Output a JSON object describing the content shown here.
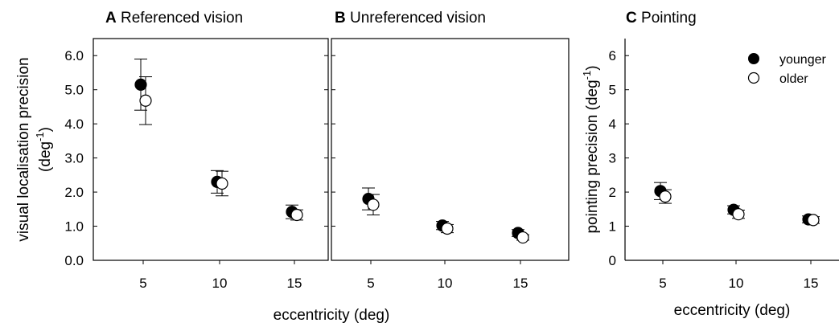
{
  "panels_shared_xlabel": "eccentricity (deg)",
  "chart_data": [
    {
      "type": "scatter",
      "letter": "A",
      "title": "Referenced vision",
      "ylabel_main": "visual localisation precision",
      "ylabel_unit": "(deg",
      "ylabel_exp": "-1",
      "ylabel_close": ")",
      "xlabel": "",
      "x_ticks": [
        "5",
        "10",
        "15"
      ],
      "y_ticks": [
        "0.0",
        "1.0",
        "2.0",
        "3.0",
        "4.0",
        "5.0",
        "6.0"
      ],
      "ylim": [
        0,
        6.5
      ],
      "x_categories": [
        5,
        10,
        15
      ],
      "series": [
        {
          "name": "younger",
          "marker": "filled",
          "x": [
            5,
            10,
            15
          ],
          "y": [
            5.15,
            2.3,
            1.42
          ],
          "err": [
            0.75,
            0.33,
            0.2
          ]
        },
        {
          "name": "older",
          "marker": "open",
          "x": [
            5,
            10,
            15
          ],
          "y": [
            4.68,
            2.25,
            1.33
          ],
          "err": [
            0.7,
            0.36,
            0.15
          ]
        }
      ]
    },
    {
      "type": "scatter",
      "letter": "B",
      "title": "Unreferenced vision",
      "xlabel": "",
      "x_ticks": [
        "5",
        "10",
        "15"
      ],
      "y_ticks": [],
      "ylim": [
        0,
        6.5
      ],
      "x_categories": [
        5,
        10,
        15
      ],
      "series": [
        {
          "name": "younger",
          "marker": "filled",
          "x": [
            5,
            10,
            15
          ],
          "y": [
            1.8,
            1.02,
            0.8
          ],
          "err": [
            0.32,
            0.12,
            0.1
          ]
        },
        {
          "name": "older",
          "marker": "open",
          "x": [
            5,
            10,
            15
          ],
          "y": [
            1.63,
            0.93,
            0.67
          ],
          "err": [
            0.3,
            0.12,
            0.08
          ]
        }
      ]
    },
    {
      "type": "scatter",
      "letter": "C",
      "title": "Pointing",
      "ylabel_main": "pointing precision (deg",
      "ylabel_exp": "-1",
      "ylabel_close": ")",
      "xlabel": "eccentricity (deg)",
      "x_ticks": [
        "5",
        "10",
        "15"
      ],
      "y_ticks": [
        "0",
        "1",
        "2",
        "3",
        "4",
        "5",
        "6"
      ],
      "ylim": [
        0,
        6.5
      ],
      "x_categories": [
        5,
        10,
        15
      ],
      "legend": {
        "placement": "top-right",
        "entries": [
          "younger",
          "older"
        ]
      },
      "series": [
        {
          "name": "younger",
          "marker": "filled",
          "x": [
            5,
            10,
            15
          ],
          "y": [
            2.03,
            1.48,
            1.2
          ],
          "err": [
            0.25,
            0.12,
            0.1
          ]
        },
        {
          "name": "older",
          "marker": "open",
          "x": [
            5,
            10,
            15
          ],
          "y": [
            1.87,
            1.35,
            1.18
          ],
          "err": [
            0.2,
            0.12,
            0.1
          ]
        }
      ]
    }
  ]
}
